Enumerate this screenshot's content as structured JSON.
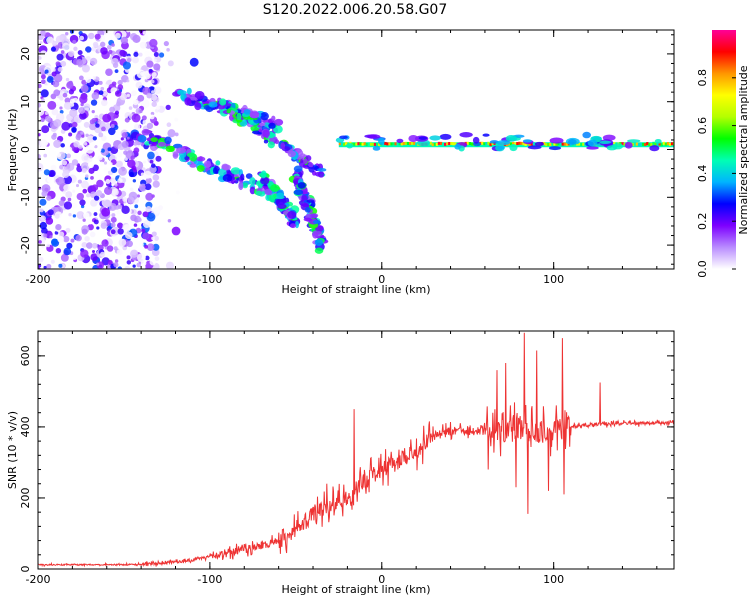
{
  "figure_title": "S120.2022.006.20.58.G07",
  "chart_data": [
    {
      "type": "heatmap",
      "xlabel": "Height of straight line (km)",
      "ylabel": "Frequency (Hz)",
      "xlim": [
        -200,
        170
      ],
      "ylim": [
        -25,
        25
      ],
      "x_ticks": [
        -200,
        -100,
        0,
        100
      ],
      "y_ticks": [
        -20,
        -10,
        0,
        10,
        20
      ],
      "colorbar": {
        "label": "Normalized spectral amplitude",
        "range": [
          0,
          1
        ],
        "ticks": [
          0.0,
          0.2,
          0.4,
          0.6,
          0.8
        ],
        "colors": [
          "#ffffff",
          "#b98cff",
          "#7d00ff",
          "#0000ff",
          "#00b4ff",
          "#00ffb4",
          "#00ff00",
          "#b4ff00",
          "#ffff00",
          "#ff9600",
          "#ff0000",
          "#ff0096"
        ]
      },
      "features": {
        "noise_region_x": [
          -200,
          -130
        ],
        "dispersion_segments": [
          {
            "x0": -140,
            "x1": -65,
            "f0": 3,
            "f1": -9
          },
          {
            "x0": -90,
            "x1": -35,
            "f0": 9,
            "f1": -5
          },
          {
            "x0": -120,
            "x1": -60,
            "f0": 12,
            "f1": 5
          },
          {
            "x0": -70,
            "x1": -50,
            "f0": -6,
            "f1": -15
          },
          {
            "x0": -50,
            "x1": -35,
            "f0": -5,
            "f1": -20
          }
        ],
        "carrier_line": {
          "x0": -25,
          "x1": 170,
          "frequency": 1
        }
      }
    },
    {
      "type": "line",
      "xlabel": "Height of straight line (km)",
      "ylabel": "SNR (10 * v/v)",
      "xlim": [
        -200,
        170
      ],
      "ylim": [
        0,
        670
      ],
      "x_ticks": [
        -200,
        -100,
        0,
        100
      ],
      "y_ticks": [
        0,
        200,
        400,
        600
      ],
      "color": "#ee3333",
      "trend": [
        {
          "x": -200,
          "y": 12
        },
        {
          "x": -150,
          "y": 12
        },
        {
          "x": -130,
          "y": 15
        },
        {
          "x": -110,
          "y": 25
        },
        {
          "x": -90,
          "y": 45
        },
        {
          "x": -70,
          "y": 65
        },
        {
          "x": -60,
          "y": 80
        },
        {
          "x": -50,
          "y": 115
        },
        {
          "x": -40,
          "y": 150
        },
        {
          "x": -30,
          "y": 175
        },
        {
          "x": -20,
          "y": 200
        },
        {
          "x": -10,
          "y": 245
        },
        {
          "x": 0,
          "y": 280
        },
        {
          "x": 10,
          "y": 300
        },
        {
          "x": 20,
          "y": 330
        },
        {
          "x": 30,
          "y": 380
        },
        {
          "x": 40,
          "y": 390
        },
        {
          "x": 50,
          "y": 385
        },
        {
          "x": 60,
          "y": 390
        },
        {
          "x": 70,
          "y": 390
        },
        {
          "x": 80,
          "y": 400
        },
        {
          "x": 90,
          "y": 380
        },
        {
          "x": 100,
          "y": 390
        },
        {
          "x": 110,
          "y": 400
        },
        {
          "x": 120,
          "y": 405
        },
        {
          "x": 140,
          "y": 410
        },
        {
          "x": 170,
          "y": 410
        }
      ],
      "peaks": [
        {
          "x": -32,
          "y": 240
        },
        {
          "x": -16,
          "y": 450
        },
        {
          "x": 67,
          "y": 560
        },
        {
          "x": 72,
          "y": 580
        },
        {
          "x": 83,
          "y": 665
        },
        {
          "x": 90,
          "y": 615
        },
        {
          "x": 105,
          "y": 650
        },
        {
          "x": 127,
          "y": 525
        }
      ],
      "troughs": [
        {
          "x": 62,
          "y": 280
        },
        {
          "x": 78,
          "y": 230
        },
        {
          "x": 85,
          "y": 155
        },
        {
          "x": 97,
          "y": 220
        },
        {
          "x": 106,
          "y": 210
        }
      ]
    }
  ]
}
